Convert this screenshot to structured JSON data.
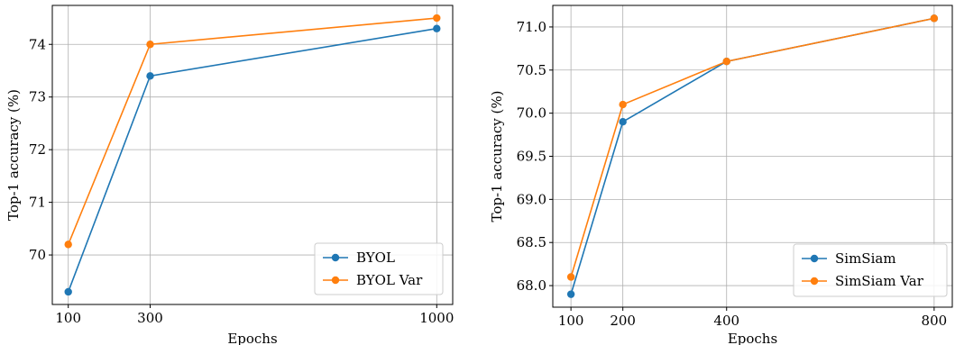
{
  "chart_data": [
    {
      "type": "line",
      "xlabel": "Epochs",
      "ylabel": "Top-1 accuracy (%)",
      "x": [
        100,
        300,
        1000
      ],
      "x_ticks": [
        100,
        300,
        1000
      ],
      "xlim": [
        61,
        1039
      ],
      "y_ticks": [
        70,
        71,
        72,
        73,
        74
      ],
      "ylim": [
        69.06,
        74.74
      ],
      "grid": true,
      "legend_position": "lower-right",
      "series": [
        {
          "name": "BYOL",
          "values": [
            69.3,
            73.4,
            74.3
          ],
          "color": "#1f77b4"
        },
        {
          "name": "BYOL Var",
          "values": [
            70.2,
            74.0,
            74.5
          ],
          "color": "#ff7f0e"
        }
      ]
    },
    {
      "type": "line",
      "xlabel": "Epochs",
      "ylabel": "Top-1 accuracy (%)",
      "x": [
        100,
        200,
        400,
        800
      ],
      "x_ticks": [
        100,
        200,
        400,
        800
      ],
      "xlim": [
        65,
        835
      ],
      "y_ticks": [
        68.0,
        68.5,
        69.0,
        69.5,
        70.0,
        70.5,
        71.0
      ],
      "ylim": [
        67.75,
        71.25
      ],
      "grid": true,
      "legend_position": "lower-right",
      "series": [
        {
          "name": "SimSiam",
          "values": [
            67.9,
            69.9,
            70.6,
            71.1
          ],
          "color": "#1f77b4"
        },
        {
          "name": "SimSiam Var",
          "values": [
            68.1,
            70.1,
            70.6,
            71.1
          ],
          "color": "#ff7f0e"
        }
      ]
    }
  ]
}
